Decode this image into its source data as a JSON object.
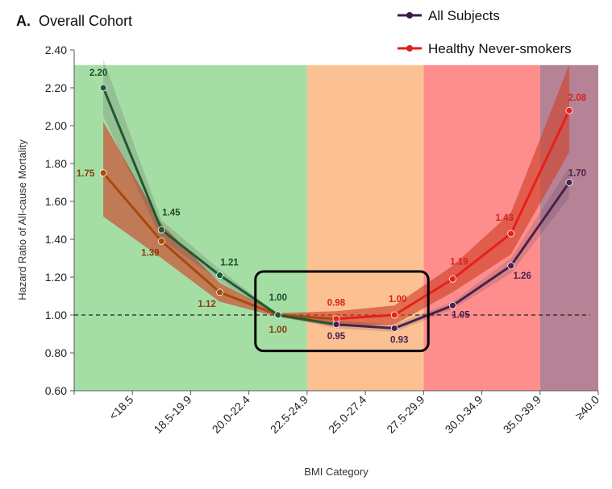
{
  "chart_data": {
    "type": "line",
    "title_prefix": "A.",
    "title": "Overall Cohort",
    "xlabel": "BMI Category",
    "ylabel": "Hazard Ratio of All-cause Mortality",
    "ylim": [
      0.6,
      2.4
    ],
    "yticks": [
      "0.60",
      "0.80",
      "1.00",
      "1.20",
      "1.40",
      "1.60",
      "1.80",
      "2.00",
      "2.20",
      "2.40"
    ],
    "categories": [
      "<18.5",
      "18.5-19.9",
      "20.0-22.4",
      "22.5-24.9",
      "25.0-27.4",
      "27.5-29.9",
      "30.0-34.9",
      "35.0-39.9",
      "≥40.0"
    ],
    "reference_line": 1.0,
    "legend_position": "top-right",
    "background_bands": [
      {
        "from": "<18.5",
        "to": "22.5-24.9",
        "color": "#a5dea5"
      },
      {
        "from": "25.0-27.4",
        "to": "27.5-29.9",
        "color": "#fcc193"
      },
      {
        "from": "30.0-34.9",
        "to": "35.0-39.9",
        "color": "#fe8e8e"
      },
      {
        "from": "≥40.0",
        "to": "≥40.0",
        "color": "#b58296"
      }
    ],
    "series": [
      {
        "name": "All Subjects",
        "legend_color": "#3a1a4a",
        "values": [
          2.2,
          1.45,
          1.21,
          1.0,
          0.95,
          0.93,
          1.05,
          1.26,
          1.7
        ],
        "labels": [
          "2.20",
          "1.45",
          "1.21",
          "1.00",
          "0.95",
          "0.93",
          "1.05",
          "1.26",
          "1.70"
        ],
        "ci_lower": [
          2.05,
          1.4,
          1.18,
          0.995,
          0.93,
          0.91,
          1.03,
          1.22,
          1.62
        ],
        "ci_upper": [
          2.35,
          1.5,
          1.24,
          1.005,
          0.97,
          0.95,
          1.07,
          1.3,
          1.78
        ]
      },
      {
        "name": "Healthy Never-smokers",
        "legend_color": "#e0201a",
        "values": [
          1.75,
          1.39,
          1.12,
          1.0,
          0.98,
          1.0,
          1.19,
          1.43,
          2.08
        ],
        "labels": [
          "1.75",
          "1.39",
          "1.12",
          "1.00",
          "0.98",
          "1.00",
          "1.19",
          "1.43",
          "2.08"
        ],
        "ci_lower": [
          1.52,
          1.3,
          1.07,
          0.99,
          0.94,
          0.95,
          1.12,
          1.32,
          1.86
        ],
        "ci_upper": [
          2.02,
          1.48,
          1.17,
          1.01,
          1.02,
          1.05,
          1.26,
          1.54,
          2.32
        ]
      }
    ],
    "colors": {
      "green_line": "#1e5a32",
      "brown_line": "#a84a0c",
      "purple_line": "#4a2050",
      "red_line": "#e8201a",
      "highlight_box": "#000000"
    }
  }
}
